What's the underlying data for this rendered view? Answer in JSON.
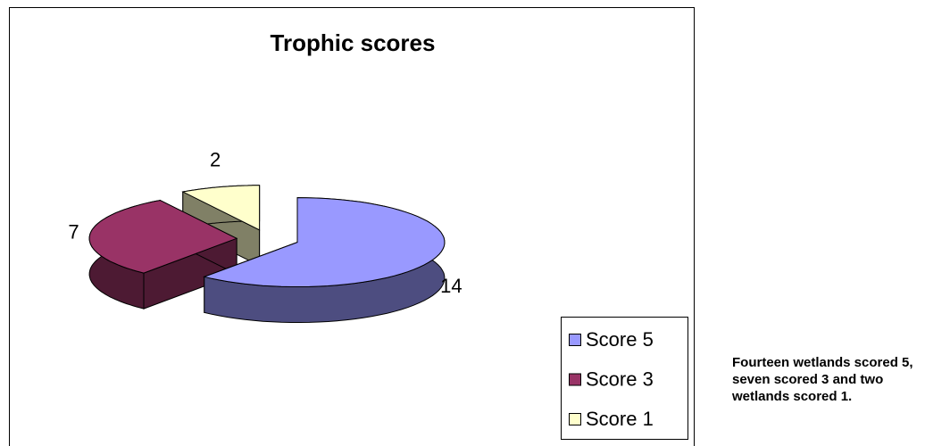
{
  "chart_data": {
    "type": "pie",
    "title": "Trophic scores",
    "categories": [
      "Score 5",
      "Score 3",
      "Score 1"
    ],
    "values": [
      14,
      7,
      2
    ],
    "colors": [
      "#9999ff",
      "#993366",
      "#ffffcc"
    ],
    "legend": "right"
  },
  "caption": "Fourteen wetlands scored 5, seven scored 3 and two wetlands scored 1."
}
